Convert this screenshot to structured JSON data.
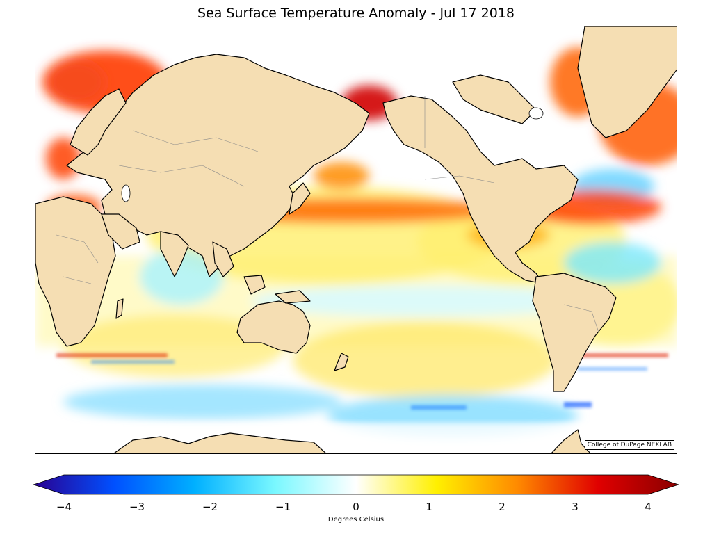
{
  "title": "Sea Surface Temperature Anomaly - Jul 17 2018",
  "credit": "College of DuPage NEXLAB",
  "units": "Degrees Celsius",
  "colorbar": {
    "min": -4,
    "max": 4,
    "ticks": [
      "−4",
      "−3",
      "−2",
      "−1",
      "0",
      "1",
      "2",
      "3",
      "4"
    ],
    "colors": [
      "#2a0090",
      "#0050ff",
      "#00b0ff",
      "#7af8ff",
      "#ffffff",
      "#fff000",
      "#ff8a00",
      "#e00000",
      "#8a0000"
    ]
  },
  "palette": {
    "land": "#f5deb3",
    "coast": "#000000",
    "border": "#888888"
  }
}
